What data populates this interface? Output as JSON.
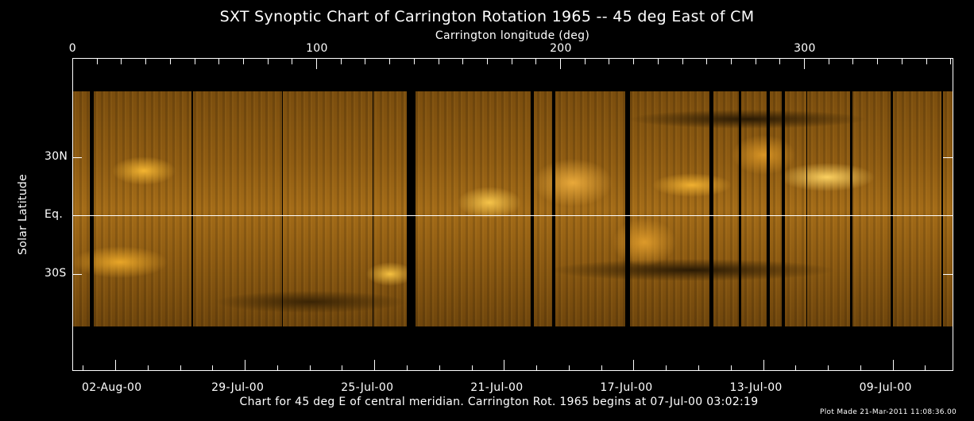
{
  "chart_data": {
    "type": "heatmap",
    "title": "SXT Synoptic Chart of Carrington Rotation 1965 -- 45 deg East of CM",
    "xlabel_top": "Carrington longitude (deg)",
    "ylabel": "Solar Latitude",
    "xlim": [
      0,
      360
    ],
    "x_ticks_top": [
      {
        "value": 0,
        "label": "0"
      },
      {
        "value": 100,
        "label": "100"
      },
      {
        "value": 200,
        "label": "200"
      },
      {
        "value": 300,
        "label": "300"
      }
    ],
    "y_ticks": [
      {
        "value": 30,
        "label": "30N"
      },
      {
        "value": 0,
        "label": "Eq."
      },
      {
        "value": -30,
        "label": "30S"
      }
    ],
    "x_ticks_bottom": [
      "02-Aug-00",
      "29-Jul-00",
      "25-Jul-00",
      "21-Jul-00",
      "17-Jul-00",
      "13-Jul-00",
      "09-Jul-00"
    ],
    "colormap": "solar soft X-ray (black-orange-yellow)",
    "footer": "Chart for 45 deg E of central meridian.  Carrington Rot. 1965 begins at 07-Jul-00 03:02:19",
    "plot_made": "Plot Made 21-Mar-2011 11:08:36.00"
  }
}
